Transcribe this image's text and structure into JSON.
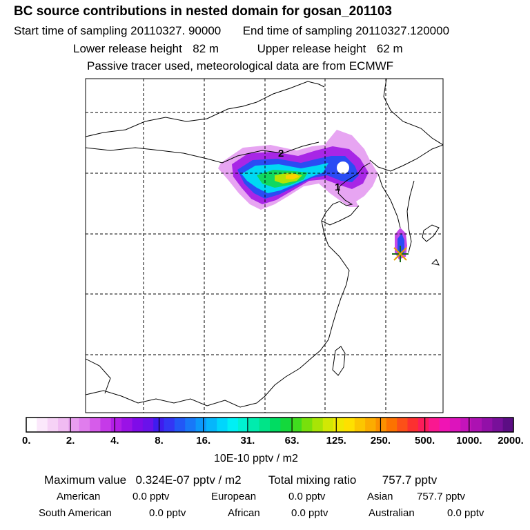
{
  "header": {
    "title": "BC  source contributions in nested domain for gosan_201103",
    "start_label": "Start time of sampling",
    "start_value": "20110327. 90000",
    "end_label": "End time of sampling",
    "end_value": "20110327.120000",
    "lower_label": "Lower release height",
    "lower_value": "82 m",
    "upper_label": "Upper release height",
    "upper_value": "62 m",
    "tracer_note": "Passive tracer used, meteorological data are from ECMWF"
  },
  "map": {
    "labels": [
      "2",
      "1"
    ],
    "receptor": "gosan"
  },
  "chart_data": {
    "type": "heatmap",
    "title": "BC  source contributions in nested domain for gosan_201103",
    "colorbar": {
      "tick_labels": [
        "0.",
        "2.",
        "4.",
        "8.",
        "16.",
        "31.",
        "63.",
        "125.",
        "250.",
        "500.",
        "1000.",
        "2000."
      ],
      "units": "10E-10 pptv / m2",
      "colors": [
        "#ffffff",
        "#fbe8fb",
        "#f6d2f6",
        "#f0bbf2",
        "#e89ef0",
        "#e07ded",
        "#d65cea",
        "#c53ae8",
        "#b21ee6",
        "#9a12e6",
        "#7f0ce8",
        "#6a12ea",
        "#3f1cee",
        "#3336f4",
        "#2258f6",
        "#1878f8",
        "#0c98fa",
        "#06b6fb",
        "#00d6fc",
        "#00f0f4",
        "#00f2d2",
        "#00ecae",
        "#00e488",
        "#00dc62",
        "#14d83c",
        "#40dc1e",
        "#78e00c",
        "#a8e406",
        "#d2e804",
        "#f0e802",
        "#fee000",
        "#fcc600",
        "#fcac00",
        "#fc9000",
        "#fc7200",
        "#fc5018",
        "#fc3030",
        "#fc1c5a",
        "#fa1890",
        "#f014b4",
        "#dc14bc",
        "#c414ba",
        "#ac12b2",
        "#9210a8",
        "#78109a",
        "#5c0e84"
      ]
    },
    "stats": {
      "maximum_label": "Maximum value",
      "maximum_value": "0.324E-07 pptv / m2",
      "total_label": "Total mixing ratio",
      "total_value": "757.7 pptv",
      "regions": [
        {
          "name": "American",
          "value": "0.0 pptv"
        },
        {
          "name": "European",
          "value": "0.0 pptv"
        },
        {
          "name": "Asian",
          "value": "757.7 pptv"
        },
        {
          "name": "South American",
          "value": "0.0 pptv"
        },
        {
          "name": "African",
          "value": "0.0 pptv"
        },
        {
          "name": "Australian",
          "value": "0.0 pptv"
        }
      ]
    }
  }
}
